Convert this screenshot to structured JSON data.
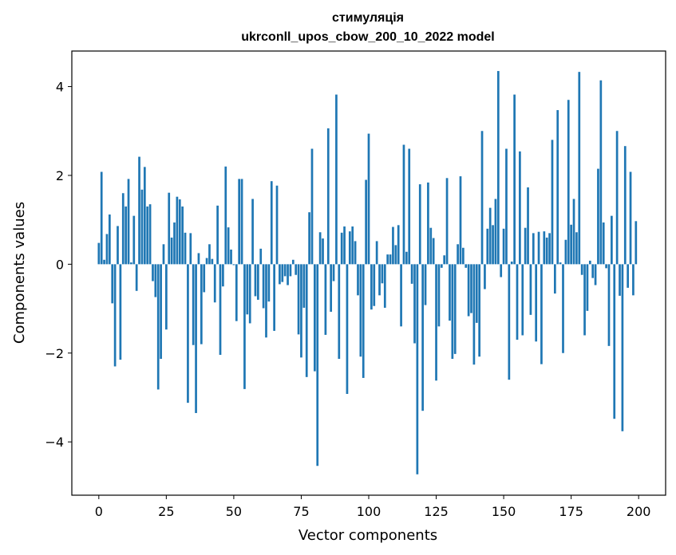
{
  "chart_data": {
    "type": "bar",
    "title_line1": "стимуляція",
    "title_line2": "ukrconll_upos_cbow_200_10_2022 model",
    "xlabel": "Vector components",
    "ylabel": "Components values",
    "xlim": [
      -10,
      210
    ],
    "ylim": [
      -5.2,
      4.8
    ],
    "xticks": [
      0,
      25,
      50,
      75,
      100,
      125,
      150,
      175,
      200
    ],
    "xtick_labels": [
      "0",
      "25",
      "50",
      "75",
      "100",
      "125",
      "150",
      "175",
      "200"
    ],
    "yticks": [
      -4,
      -2,
      0,
      2,
      4
    ],
    "ytick_labels": [
      "−4",
      "−2",
      "0",
      "2",
      "4"
    ],
    "bar_color": "#1f77b4",
    "x": [
      0,
      1,
      2,
      3,
      4,
      5,
      6,
      7,
      8,
      9,
      10,
      11,
      12,
      13,
      14,
      15,
      16,
      17,
      18,
      19,
      20,
      21,
      22,
      23,
      24,
      25,
      26,
      27,
      28,
      29,
      30,
      31,
      32,
      33,
      34,
      35,
      36,
      37,
      38,
      39,
      40,
      41,
      42,
      43,
      44,
      45,
      46,
      47,
      48,
      49,
      50,
      51,
      52,
      53,
      54,
      55,
      56,
      57,
      58,
      59,
      60,
      61,
      62,
      63,
      64,
      65,
      66,
      67,
      68,
      69,
      70,
      71,
      72,
      73,
      74,
      75,
      76,
      77,
      78,
      79,
      80,
      81,
      82,
      83,
      84,
      85,
      86,
      87,
      88,
      89,
      90,
      91,
      92,
      93,
      94,
      95,
      96,
      97,
      98,
      99,
      100,
      101,
      102,
      103,
      104,
      105,
      106,
      107,
      108,
      109,
      110,
      111,
      112,
      113,
      114,
      115,
      116,
      117,
      118,
      119,
      120,
      121,
      122,
      123,
      124,
      125,
      126,
      127,
      128,
      129,
      130,
      131,
      132,
      133,
      134,
      135,
      136,
      137,
      138,
      139,
      140,
      141,
      142,
      143,
      144,
      145,
      146,
      147,
      148,
      149,
      150,
      151,
      152,
      153,
      154,
      155,
      156,
      157,
      158,
      159,
      160,
      161,
      162,
      163,
      164,
      165,
      166,
      167,
      168,
      169,
      170,
      171,
      172,
      173,
      174,
      175,
      176,
      177,
      178,
      179,
      180,
      181,
      182,
      183,
      184,
      185,
      186,
      187,
      188,
      189,
      190,
      191,
      192,
      193,
      194,
      195,
      196,
      197,
      198,
      199
    ],
    "values": [
      0.48,
      2.08,
      0.1,
      0.68,
      1.12,
      -0.88,
      -2.3,
      0.86,
      -2.15,
      1.6,
      1.3,
      1.92,
      0.04,
      1.09,
      -0.6,
      2.42,
      1.68,
      2.19,
      1.3,
      1.35,
      -0.38,
      -0.74,
      -2.82,
      -2.13,
      0.45,
      -1.47,
      1.61,
      0.6,
      0.94,
      1.52,
      1.46,
      1.3,
      0.71,
      -3.12,
      0.7,
      -1.82,
      -3.35,
      0.25,
      -1.8,
      -0.63,
      0.14,
      0.45,
      0.12,
      -0.86,
      1.32,
      -2.04,
      -0.5,
      2.2,
      0.83,
      0.33,
      -0.02,
      -1.28,
      1.92,
      1.92,
      -2.81,
      -1.13,
      -1.33,
      1.47,
      -0.72,
      -0.8,
      0.35,
      -0.99,
      -1.65,
      -0.84,
      1.87,
      -1.5,
      1.77,
      -0.45,
      -0.4,
      -0.27,
      -0.47,
      -0.27,
      0.1,
      -0.24,
      -1.58,
      -2.1,
      -0.98,
      -2.54,
      1.17,
      2.6,
      -2.41,
      -4.54,
      0.72,
      0.58,
      -1.59,
      3.06,
      -1.07,
      -0.38,
      3.82,
      -2.13,
      0.71,
      0.85,
      -2.92,
      0.74,
      0.85,
      0.52,
      -0.7,
      -2.08,
      -2.56,
      1.9,
      2.94,
      -1.02,
      -0.94,
      0.52,
      -0.7,
      -0.43,
      -0.98,
      0.22,
      0.22,
      0.84,
      0.43,
      0.88,
      -1.4,
      2.69,
      0.28,
      2.6,
      -0.44,
      -1.78,
      -4.73,
      1.8,
      -3.3,
      -0.92,
      1.84,
      0.82,
      0.59,
      -2.62,
      -1.4,
      -0.08,
      0.2,
      1.94,
      -1.27,
      -2.13,
      -2.02,
      0.45,
      1.98,
      0.37,
      -0.08,
      -1.17,
      -1.1,
      -2.26,
      -1.32,
      -2.08,
      3.0,
      -0.56,
      0.8,
      1.27,
      0.88,
      1.47,
      4.35,
      -0.29,
      0.8,
      2.6,
      -2.6,
      0.06,
      3.82,
      -1.7,
      2.54,
      -1.6,
      0.82,
      1.73,
      -1.14,
      0.7,
      -1.74,
      0.73,
      -2.25,
      0.74,
      0.6,
      0.7,
      2.8,
      -0.66,
      3.47,
      0.04,
      -2.0,
      0.55,
      3.7,
      0.89,
      1.47,
      0.72,
      4.33,
      -0.24,
      -1.6,
      -1.05,
      0.08,
      -0.31,
      -0.47,
      2.15,
      4.14,
      0.94,
      -0.09,
      -1.84,
      1.09,
      -3.48,
      3.0,
      -0.71,
      -3.76,
      2.66,
      -0.53,
      2.08,
      -0.7,
      0.97
    ]
  }
}
